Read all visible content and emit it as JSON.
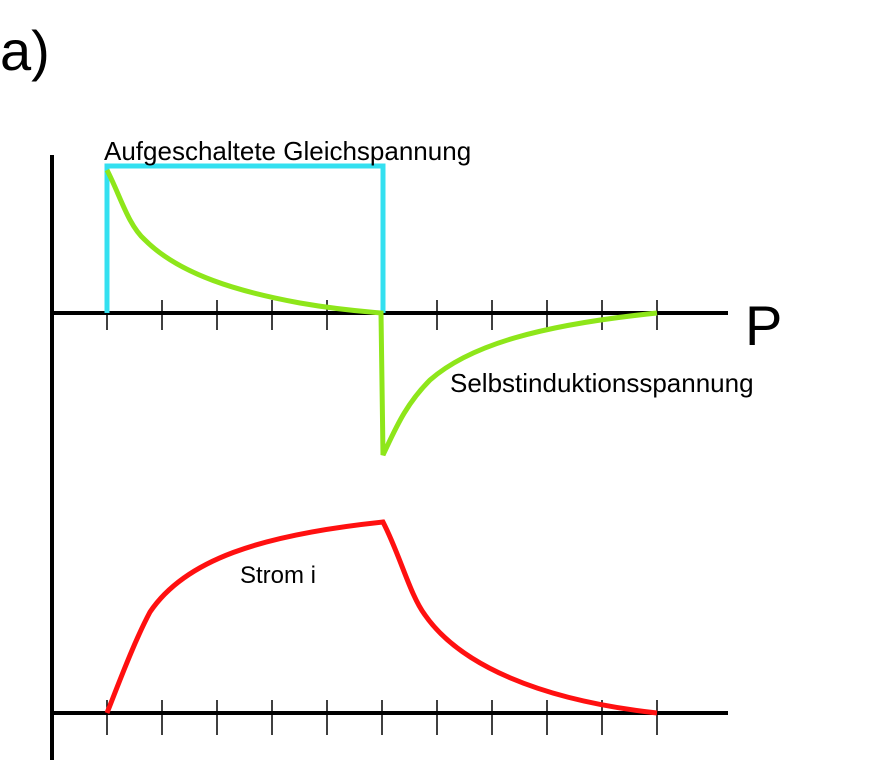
{
  "panel_label": "a)",
  "upper_curve_label": "Aufgeschaltete Gleichspannung",
  "axis_label": "P",
  "induction_label": "Selbstinduktionsspannung",
  "current_label": "Strom i"
}
